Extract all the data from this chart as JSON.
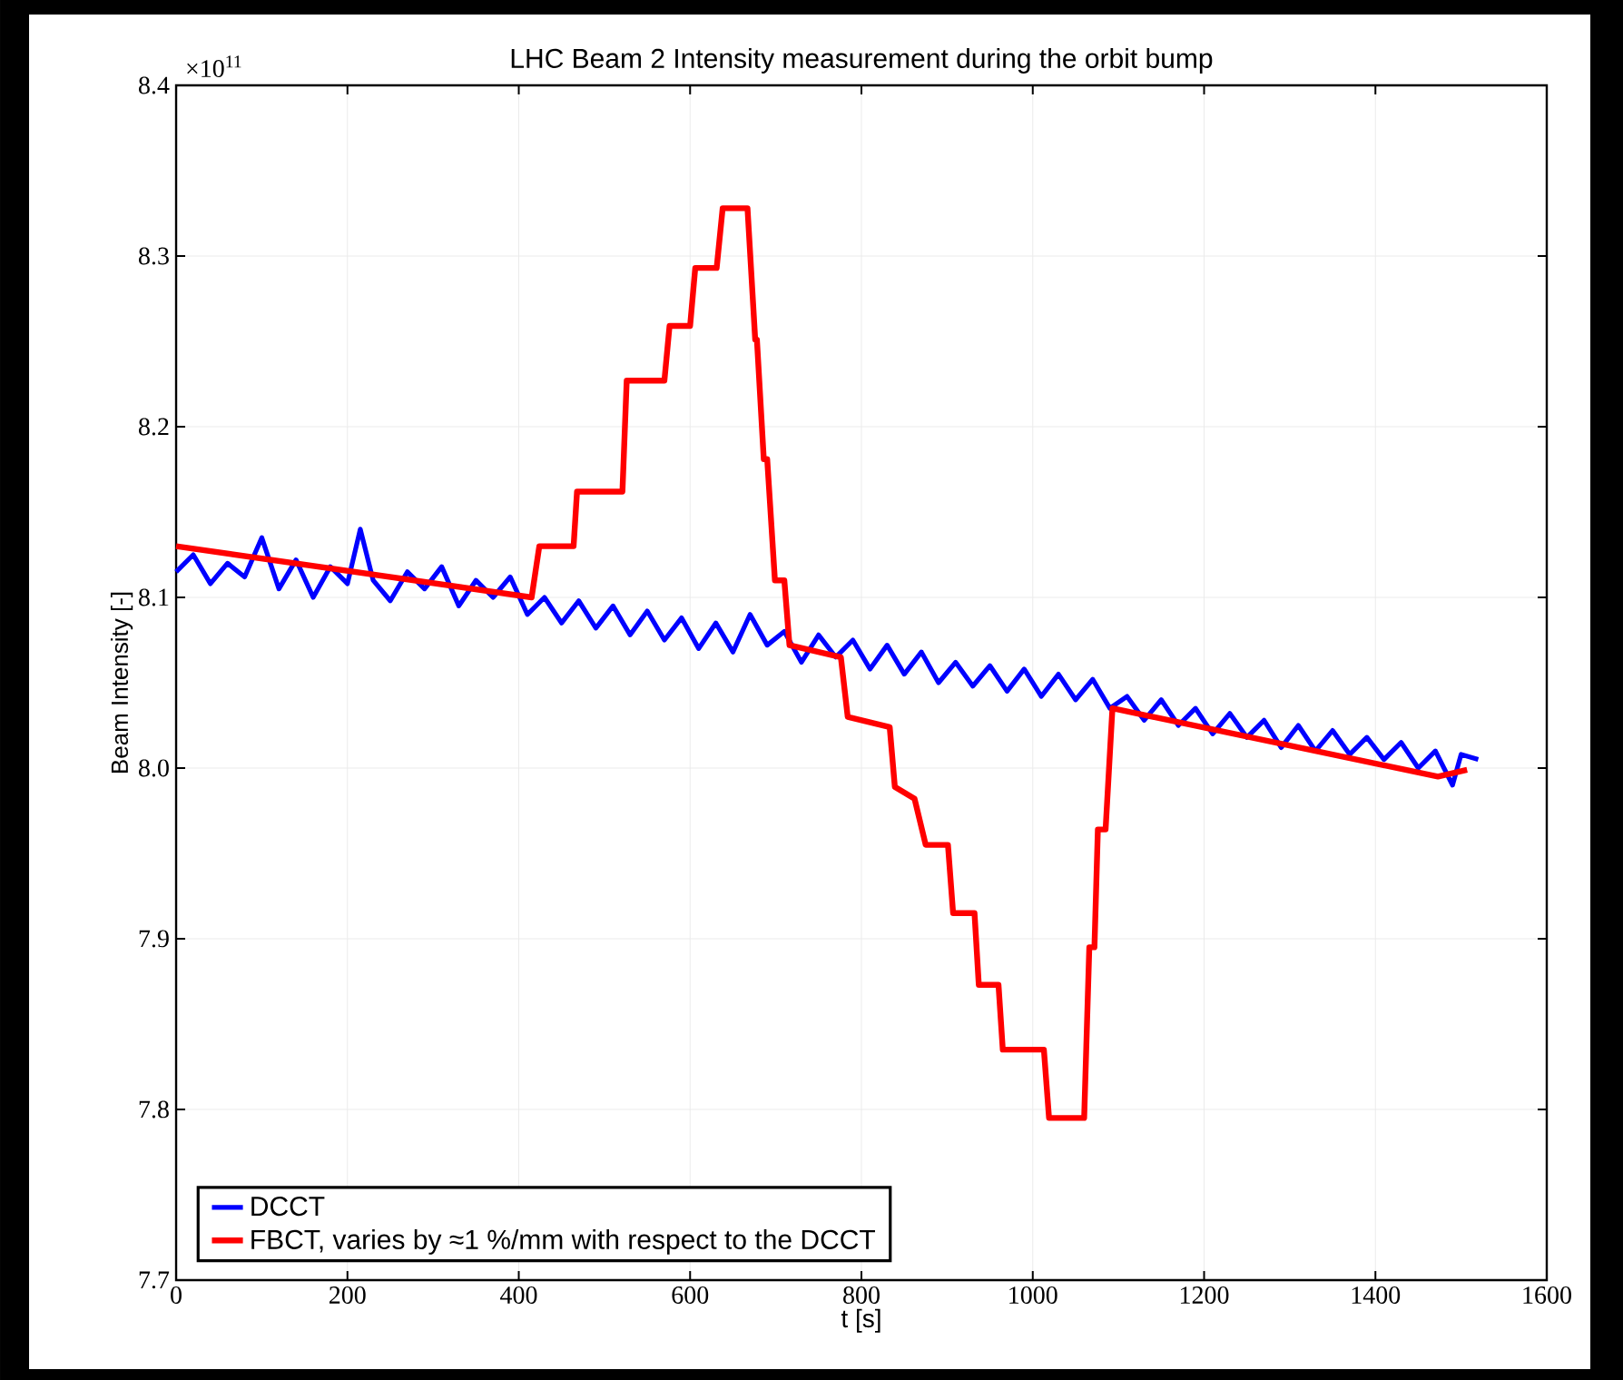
{
  "chart_data": {
    "type": "line",
    "title": "LHC Beam 2 Intensity measurement during the orbit bump",
    "xlabel": "t [s]",
    "ylabel": "Beam Intensity [-]",
    "annotations": [
      "×10$^{11}$"
    ],
    "xlim": [
      0,
      1600
    ],
    "ylim": [
      7.7,
      8.4
    ],
    "xticks": [
      0,
      200,
      400,
      600,
      800,
      1000,
      1200,
      1400,
      1600
    ],
    "yticks": [
      7.7,
      7.8,
      7.9,
      {
        "value": 8,
        "label": "8.0"
      },
      8.1,
      8.2,
      8.3,
      8.4
    ],
    "grid": true,
    "legend": "bottom left",
    "marker": "none",
    "line_style": "solid",
    "series": [
      {
        "name": "DCCT",
        "color": "#0000ff",
        "x": [
          0,
          20,
          40,
          60,
          80,
          100,
          120,
          140,
          160,
          180,
          200,
          215,
          230,
          250,
          270,
          290,
          310,
          330,
          350,
          370,
          390,
          410,
          430,
          450,
          470,
          490,
          510,
          530,
          550,
          570,
          590,
          610,
          630,
          650,
          670,
          690,
          710,
          730,
          750,
          770,
          790,
          810,
          830,
          850,
          870,
          890,
          910,
          930,
          950,
          970,
          990,
          1010,
          1030,
          1050,
          1070,
          1090,
          1110,
          1130,
          1150,
          1170,
          1190,
          1210,
          1230,
          1250,
          1270,
          1290,
          1310,
          1330,
          1350,
          1370,
          1390,
          1410,
          1430,
          1450,
          1470,
          1490,
          1500,
          1520
        ],
        "values": [
          8.115,
          8.125,
          8.108,
          8.12,
          8.112,
          8.135,
          8.105,
          8.122,
          8.1,
          8.118,
          8.108,
          8.14,
          8.11,
          8.098,
          8.115,
          8.105,
          8.118,
          8.095,
          8.11,
          8.1,
          8.112,
          8.09,
          8.1,
          8.085,
          8.098,
          8.082,
          8.095,
          8.078,
          8.092,
          8.075,
          8.088,
          8.07,
          8.085,
          8.068,
          8.09,
          8.072,
          8.08,
          8.062,
          8.078,
          8.065,
          8.075,
          8.058,
          8.072,
          8.055,
          8.068,
          8.05,
          8.062,
          8.048,
          8.06,
          8.045,
          8.058,
          8.042,
          8.055,
          8.04,
          8.052,
          8.035,
          8.042,
          8.028,
          8.04,
          8.025,
          8.035,
          8.02,
          8.032,
          8.018,
          8.028,
          8.012,
          8.025,
          8.01,
          8.022,
          8.008,
          8.018,
          8.005,
          8.015,
          8.0,
          8.01,
          7.99,
          8.008,
          8.005
        ]
      },
      {
        "name": "FBCT, varies by ≈1 %/mm with respect to the DCCT",
        "color": "#ff0000",
        "x": [
          0,
          415,
          424,
          464,
          468,
          521,
          526,
          570,
          576,
          600,
          606,
          631,
          638,
          667,
          676,
          678,
          686,
          690,
          699,
          710,
          716,
          776,
          784,
          833,
          839,
          862,
          875,
          901,
          907,
          932,
          937,
          960,
          965,
          1013,
          1019,
          1060,
          1066,
          1072,
          1076,
          1085,
          1093,
          1473,
          1507
        ],
        "values": [
          8.13,
          8.1,
          8.13,
          8.13,
          8.162,
          8.162,
          8.227,
          8.227,
          8.259,
          8.259,
          8.293,
          8.293,
          8.328,
          8.328,
          8.251,
          8.251,
          8.181,
          8.181,
          8.11,
          8.11,
          8.072,
          8.065,
          8.03,
          8.024,
          7.989,
          7.982,
          7.955,
          7.955,
          7.915,
          7.915,
          7.873,
          7.873,
          7.835,
          7.835,
          7.795,
          7.795,
          7.895,
          7.895,
          7.964,
          7.964,
          8.035,
          7.995,
          7.999
        ]
      }
    ]
  }
}
